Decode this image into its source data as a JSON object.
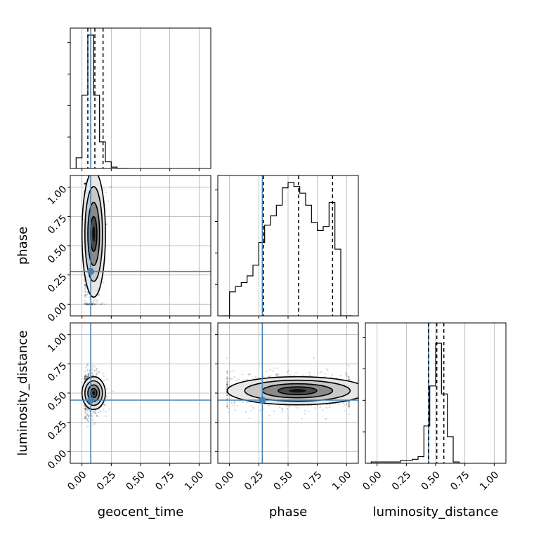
{
  "chart_data": {
    "type": "corner",
    "parameters": [
      "geocent_time",
      "phase",
      "luminosity_distance"
    ],
    "truths": {
      "geocent_time": 0.075,
      "phase": 0.28,
      "luminosity_distance": 0.44
    },
    "truth_color": "#4682b4",
    "tick_labels": [
      "0.00",
      "0.25",
      "0.50",
      "0.75",
      "1.00"
    ],
    "axis_ranges": {
      "geocent_time": [
        -0.1,
        1.1
      ],
      "phase": [
        -0.1,
        1.1
      ],
      "luminosity_distance": [
        -0.1,
        1.1
      ]
    },
    "grid": true,
    "histograms": {
      "geocent_time": {
        "bin_edges": [
          -0.05,
          0.0,
          0.05,
          0.1,
          0.15,
          0.2,
          0.25,
          0.3,
          0.35,
          0.4
        ],
        "values": [
          0.08,
          0.55,
          1.0,
          0.55,
          0.2,
          0.05,
          0.01,
          0.0,
          0.0
        ],
        "quantiles": [
          0.05,
          0.11,
          0.18
        ]
      },
      "phase": {
        "bin_edges": [
          -0.05,
          0.0,
          0.05,
          0.1,
          0.15,
          0.2,
          0.25,
          0.3,
          0.35,
          0.4,
          0.45,
          0.5,
          0.55,
          0.6,
          0.65,
          0.7,
          0.75,
          0.8,
          0.85,
          0.9,
          0.95,
          1.0,
          1.05
        ],
        "values": [
          0.0,
          0.18,
          0.22,
          0.25,
          0.3,
          0.38,
          0.55,
          0.68,
          0.75,
          0.83,
          0.96,
          1.0,
          0.97,
          0.92,
          0.83,
          0.7,
          0.64,
          0.67,
          0.85,
          0.5,
          0.0,
          0.0
        ],
        "quantiles": [
          0.29,
          0.59,
          0.88
        ]
      },
      "luminosity_distance": {
        "bin_edges": [
          -0.1,
          -0.05,
          0.0,
          0.05,
          0.1,
          0.15,
          0.2,
          0.25,
          0.3,
          0.35,
          0.4,
          0.45,
          0.5,
          0.55,
          0.6,
          0.65,
          0.7,
          0.75
        ],
        "values": [
          0.0,
          0.01,
          0.01,
          0.01,
          0.01,
          0.01,
          0.02,
          0.02,
          0.03,
          0.05,
          0.28,
          0.58,
          0.9,
          0.52,
          0.2,
          0.01,
          0.0
        ],
        "quantiles": [
          0.44,
          0.51,
          0.57
        ]
      }
    },
    "joint": [
      {
        "x": "geocent_time",
        "y": "phase",
        "center": [
          0.1,
          0.6
        ],
        "sigma": [
          0.05,
          0.27
        ]
      },
      {
        "x": "geocent_time",
        "y": "luminosity_distance",
        "center": [
          0.1,
          0.5
        ],
        "sigma": [
          0.05,
          0.07
        ]
      },
      {
        "x": "phase",
        "y": "luminosity_distance",
        "center": [
          0.58,
          0.52
        ],
        "sigma": [
          0.3,
          0.06
        ]
      }
    ]
  }
}
